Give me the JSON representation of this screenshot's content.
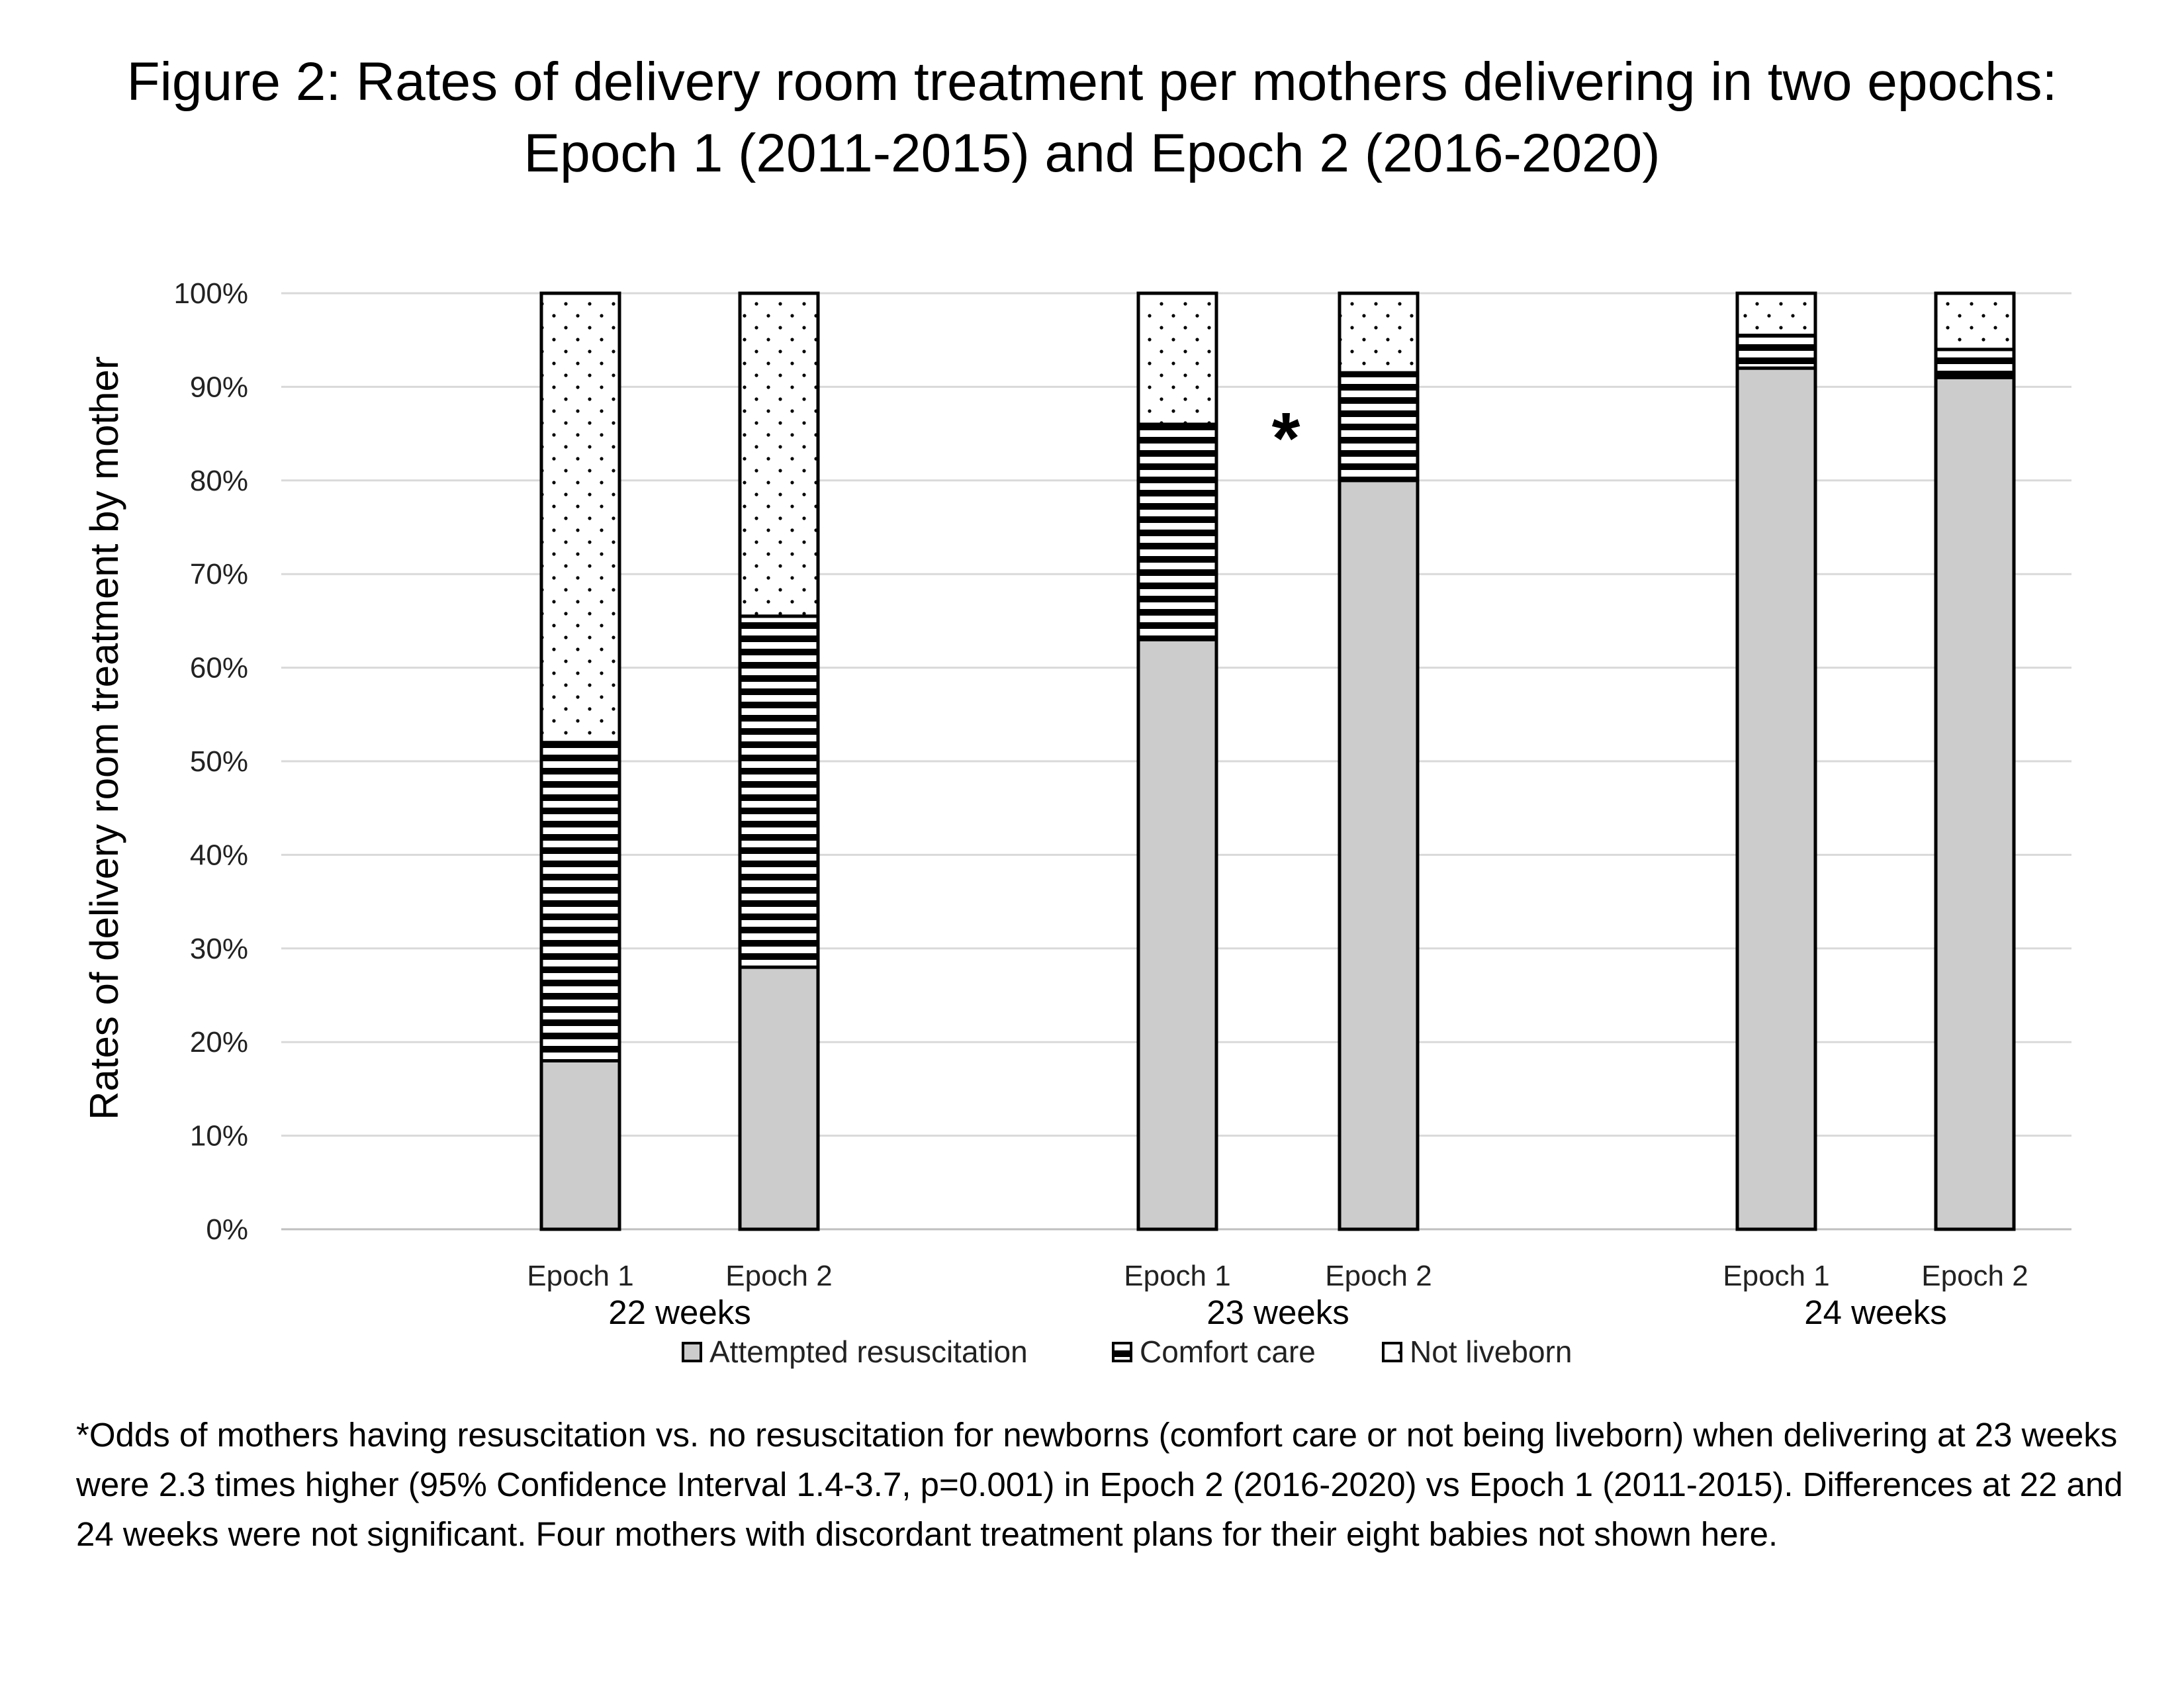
{
  "title": {
    "line1": "Figure 2: Rates of delivery room treatment per mothers delivering in two epochs:",
    "line2": "Epoch 1 (2011-2015) and Epoch 2 (2016-2020)"
  },
  "footnote": "*Odds of mothers having resuscitation vs. no resuscitation for newborns (comfort care or not being liveborn) when delivering at 23 weeks were 2.3 times higher (95% Confidence Interval 1.4-3.7, p=0.001) in Epoch 2 (2016-2020) vs Epoch 1 (2011-2015). Differences at 22 and 24 weeks were not significant. Four mothers with discordant treatment plans for their eight babies not shown here.",
  "chart_data": {
    "type": "bar",
    "stacked": true,
    "ylabel": "Rates of delivery room treatment by mother",
    "ylim": [
      0,
      100
    ],
    "yticks": [
      "0%",
      "10%",
      "20%",
      "30%",
      "40%",
      "50%",
      "60%",
      "70%",
      "80%",
      "90%",
      "100%"
    ],
    "grid": true,
    "legend_position": "bottom",
    "groups": [
      {
        "name": "22 weeks",
        "categories": [
          "Epoch 1",
          "Epoch 2"
        ]
      },
      {
        "name": "23 weeks",
        "categories": [
          "Epoch 1",
          "Epoch 2"
        ]
      },
      {
        "name": "24 weeks",
        "categories": [
          "Epoch 1",
          "Epoch 2"
        ]
      }
    ],
    "series": [
      {
        "name": "Attempted resuscitation",
        "pattern": "solid",
        "color": "#cccccc",
        "values": [
          18,
          28,
          63,
          80,
          92,
          91
        ]
      },
      {
        "name": "Comfort care",
        "pattern": "horizontal-stripes",
        "color": "#000000",
        "values": [
          34,
          37.5,
          23,
          11.5,
          3.5,
          3
        ]
      },
      {
        "name": "Not liveborn",
        "pattern": "dots",
        "color": "#ffffff",
        "values": [
          48,
          34.5,
          14,
          8.5,
          4.5,
          6
        ]
      }
    ],
    "annotations": [
      {
        "text": "*",
        "target_group": "23 weeks"
      }
    ]
  }
}
